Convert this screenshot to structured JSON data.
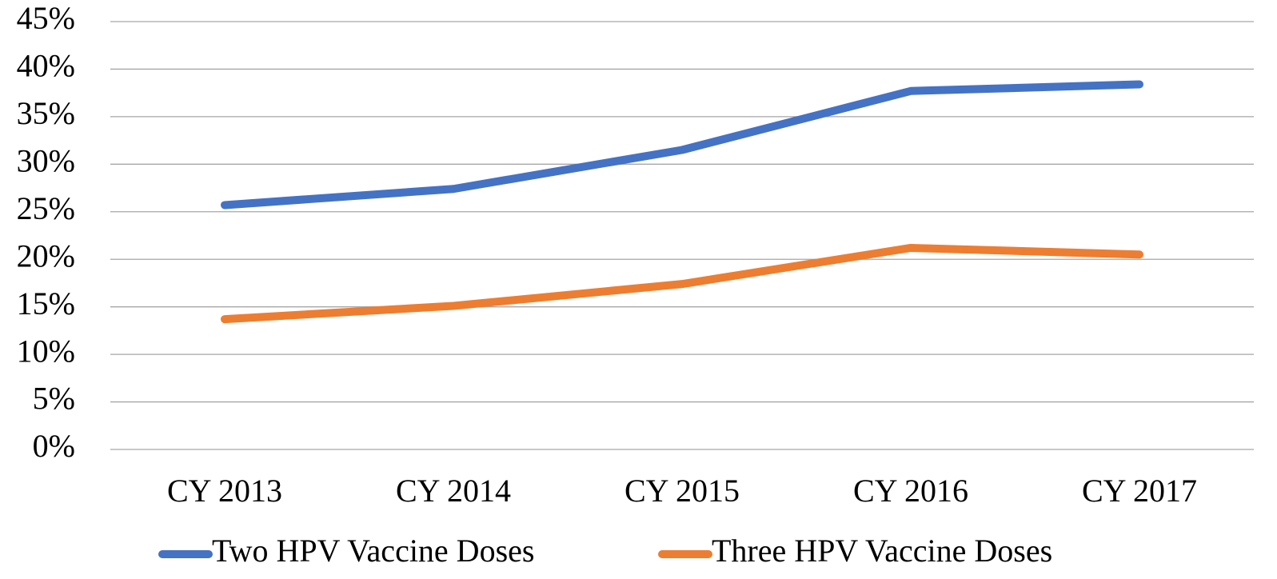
{
  "chart_data": {
    "type": "line",
    "categories": [
      "CY 2013",
      "CY 2014",
      "CY 2015",
      "CY 2016",
      "CY 2017"
    ],
    "series": [
      {
        "name": "Two HPV Vaccine Doses",
        "color": "#4472c4",
        "values": [
          25.7,
          27.4,
          31.5,
          37.7,
          38.4
        ]
      },
      {
        "name": "Three HPV Vaccine Doses",
        "color": "#ed7d31",
        "values": [
          13.7,
          15.1,
          17.4,
          21.2,
          20.5
        ]
      }
    ],
    "ylim": [
      0,
      45
    ],
    "yticks": [
      {
        "value": 0,
        "label": "0%"
      },
      {
        "value": 5,
        "label": "5%"
      },
      {
        "value": 10,
        "label": "10%"
      },
      {
        "value": 15,
        "label": "15%"
      },
      {
        "value": 20,
        "label": "20%"
      },
      {
        "value": 25,
        "label": "25%"
      },
      {
        "value": 30,
        "label": "30%"
      },
      {
        "value": 35,
        "label": "35%"
      },
      {
        "value": 40,
        "label": "40%"
      },
      {
        "value": 45,
        "label": "45%"
      }
    ],
    "grid": true,
    "legend": "bottom"
  }
}
